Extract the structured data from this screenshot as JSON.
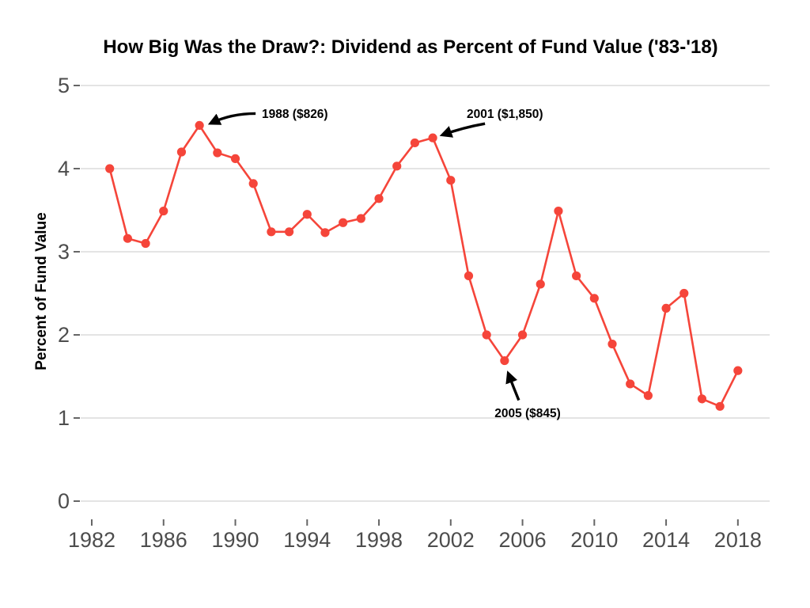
{
  "chart_data": {
    "type": "line",
    "title": "How Big Was the Draw?: Dividend as Percent of Fund Value ('83-'18)",
    "ylabel": "Percent of Fund Value",
    "xlabel": "",
    "series_name": "dividend-percent-of-fund-value",
    "x": [
      1983,
      1984,
      1985,
      1986,
      1987,
      1988,
      1989,
      1990,
      1991,
      1992,
      1993,
      1994,
      1995,
      1996,
      1997,
      1998,
      1999,
      2000,
      2001,
      2002,
      2003,
      2004,
      2005,
      2006,
      2007,
      2008,
      2009,
      2010,
      2011,
      2012,
      2013,
      2014,
      2015,
      2016,
      2017,
      2018
    ],
    "values": [
      4.0,
      3.16,
      3.1,
      3.49,
      4.2,
      4.52,
      4.19,
      4.12,
      3.82,
      3.24,
      3.24,
      3.45,
      3.23,
      3.35,
      3.4,
      3.64,
      4.03,
      4.31,
      4.37,
      3.86,
      2.71,
      2.0,
      1.69,
      2.0,
      2.61,
      3.49,
      2.71,
      2.44,
      1.89,
      1.41,
      1.27,
      2.32,
      2.5,
      1.23,
      1.14,
      1.57
    ],
    "ylim": [
      0,
      5
    ],
    "yticks": [
      0,
      1,
      2,
      3,
      4,
      5
    ],
    "xticks": [
      1982,
      1986,
      1990,
      1994,
      1998,
      2002,
      2006,
      2010,
      2014,
      2018
    ],
    "grid": "horizontal-only",
    "legend": "none",
    "annotations": [
      {
        "label": "1988 ($826)",
        "year": 1988,
        "value": 4.52
      },
      {
        "label": "2001 ($1,850)",
        "year": 2001,
        "value": 4.37
      },
      {
        "label": "2005 ($845)",
        "year": 2005,
        "value": 1.69
      }
    ],
    "colors": {
      "line": "#f5453a",
      "point": "#f5453a",
      "grid": "#dcdcdc",
      "axis_tick": "#666666",
      "tick_label": "#4d4d4d",
      "annotation": "#000000",
      "background": "#ffffff"
    }
  }
}
